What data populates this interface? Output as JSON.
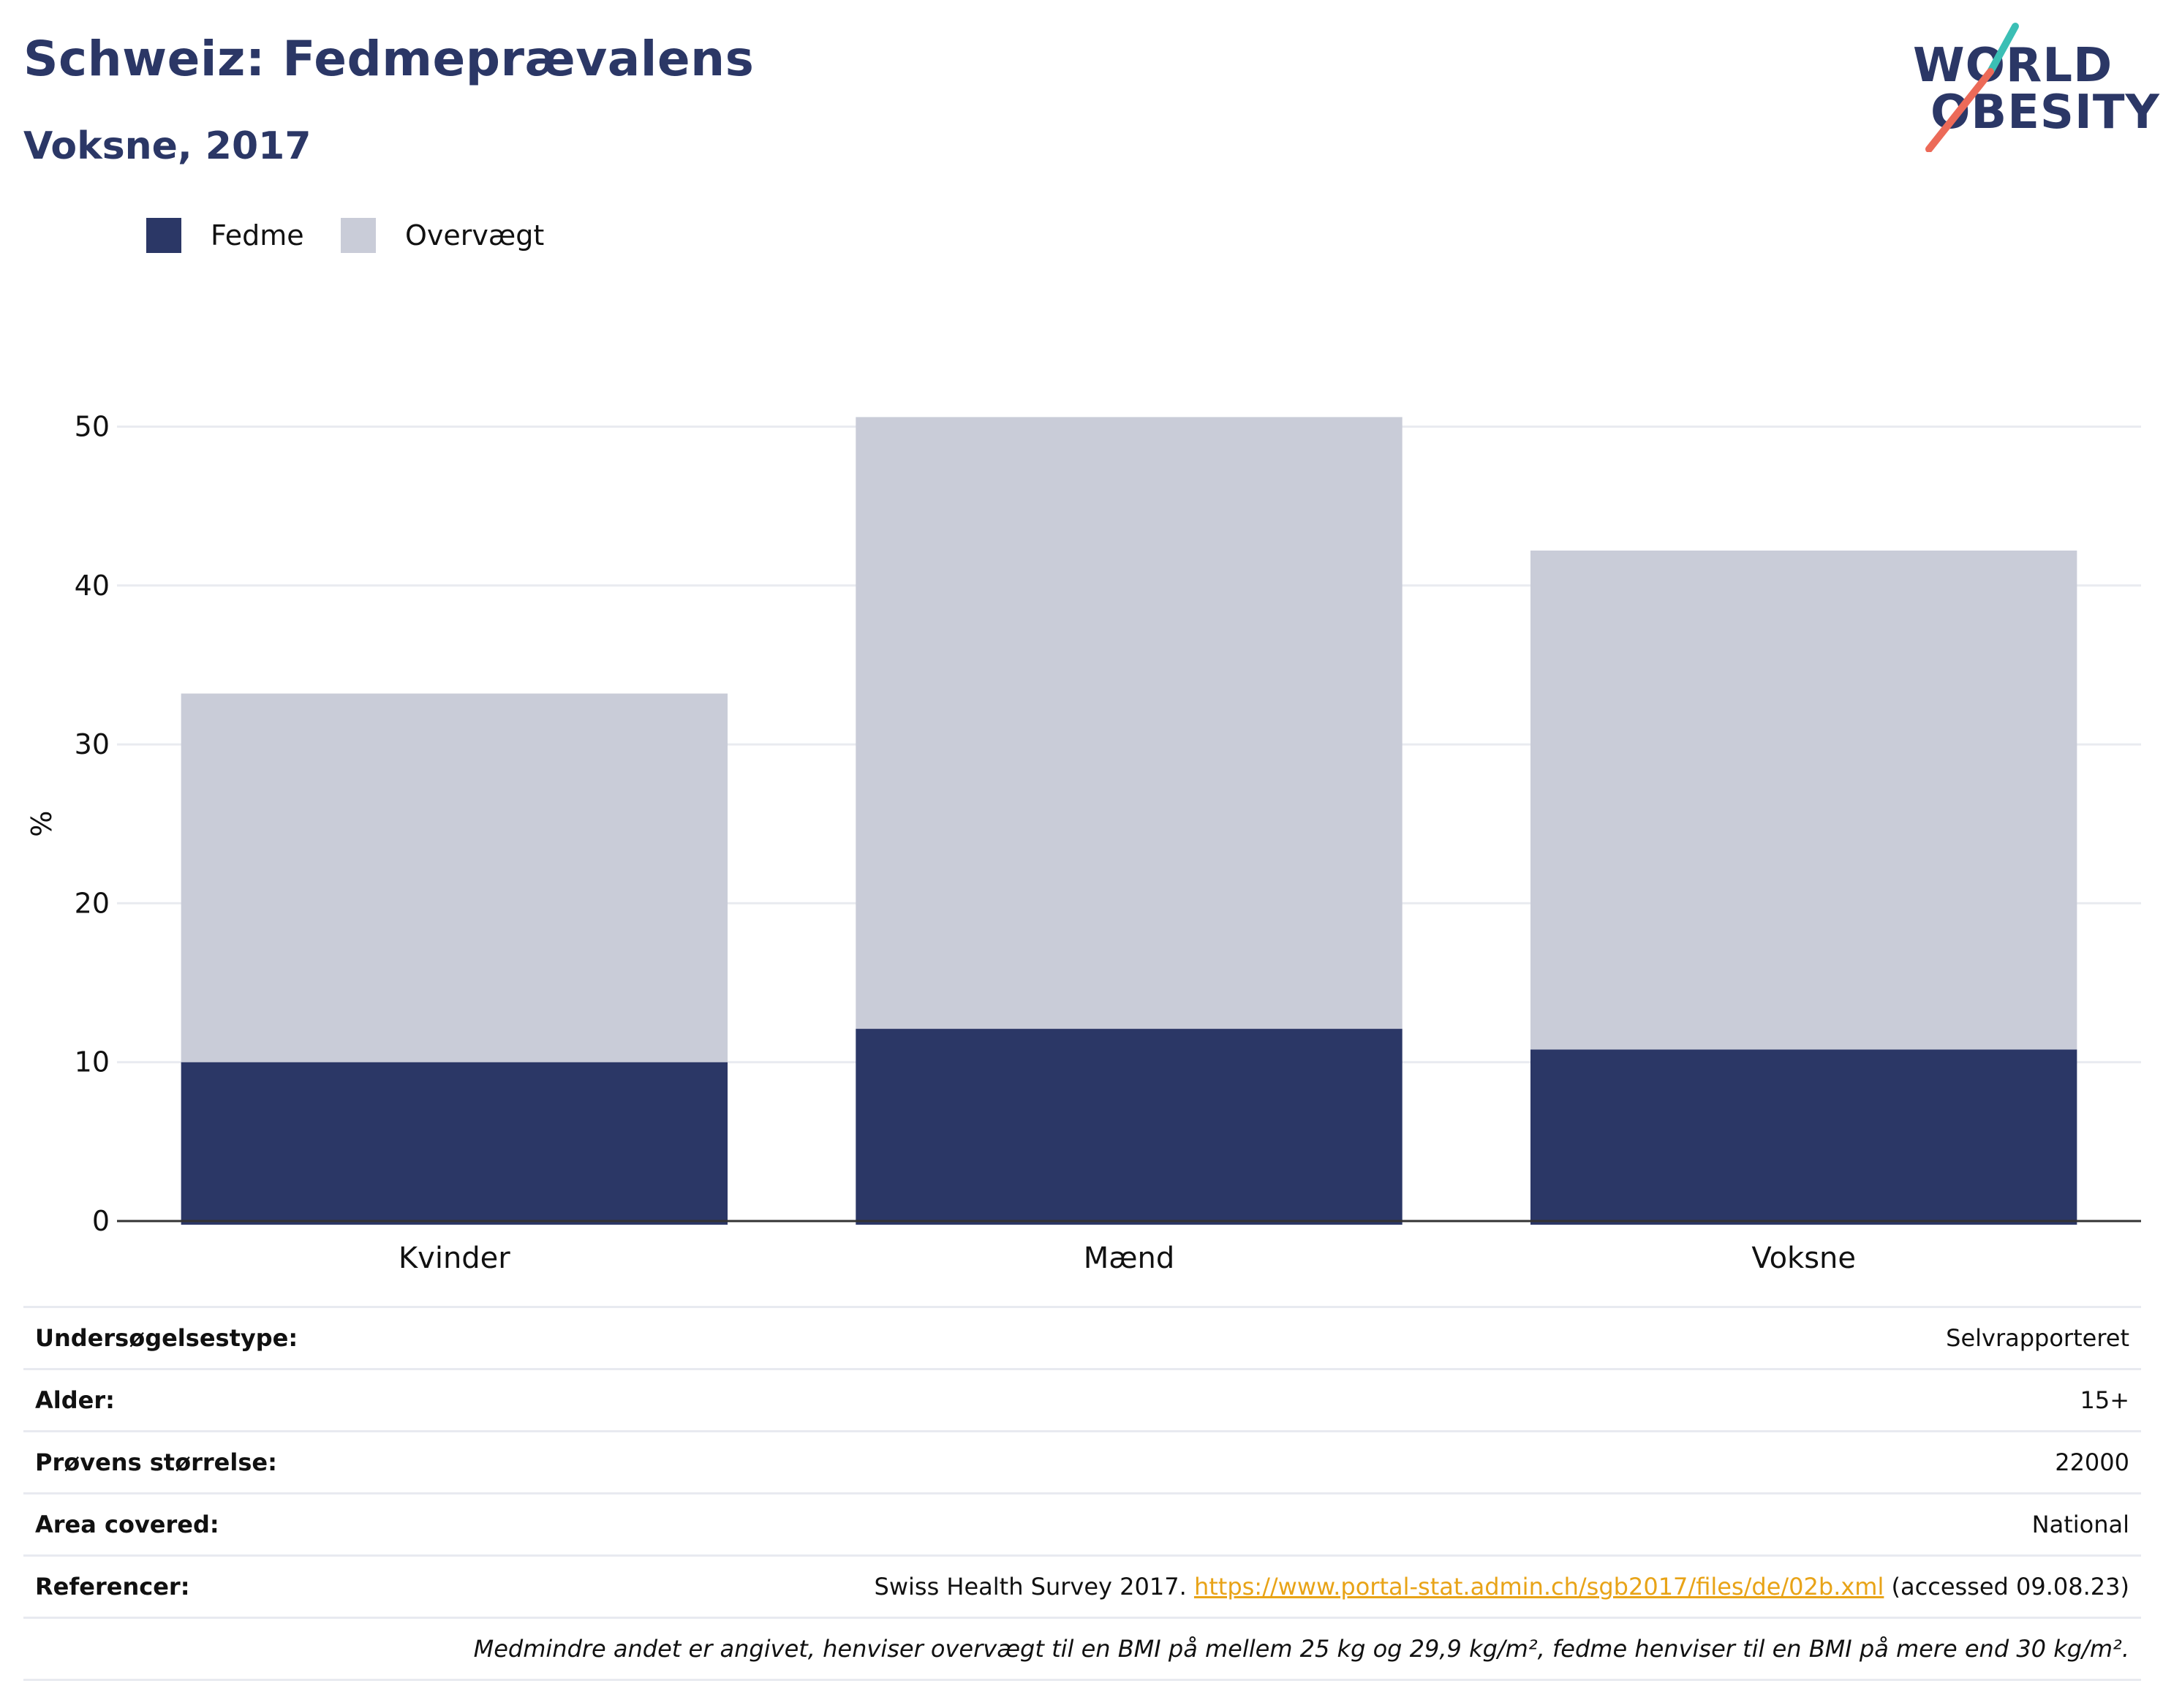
{
  "header": {
    "title": "Schweiz: Fedmeprævalens",
    "subtitle": "Voksne, 2017"
  },
  "logo": {
    "line1": "WORLD",
    "line2": "OBESITY",
    "colors": {
      "text": "#2b3766",
      "teal": "#3bbfb5",
      "coral": "#ec6a58"
    }
  },
  "legend": [
    {
      "label": "Fedme",
      "color": "#2b3766"
    },
    {
      "label": "Overvægt",
      "color": "#c9ccd8"
    }
  ],
  "chart_data": {
    "type": "bar",
    "stacked": true,
    "title": "Schweiz: Fedmeprævalens",
    "subtitle": "Voksne, 2017",
    "xlabel": "",
    "ylabel": "%",
    "categories": [
      "Kvinder",
      "Mænd",
      "Voksne"
    ],
    "series": [
      {
        "name": "Fedme",
        "color": "#2b3766",
        "values": [
          10,
          12.1,
          10.8
        ]
      },
      {
        "name": "Overvægt",
        "color": "#c9ccd8",
        "values": [
          23.2,
          38.5,
          31.4
        ]
      }
    ],
    "ylim": [
      0,
      52
    ],
    "yticks": [
      0,
      10,
      20,
      30,
      40,
      50
    ],
    "grid": true,
    "legend_position": "top-left"
  },
  "meta": {
    "rows": [
      {
        "key": "Undersøgelsestype:",
        "value": "Selvrapporteret"
      },
      {
        "key": "Alder:",
        "value": "15+"
      },
      {
        "key": "Prøvens størrelse:",
        "value": "22000"
      },
      {
        "key": "Area covered:",
        "value": "National"
      }
    ],
    "references": {
      "key": "Referencer:",
      "prefix": "Swiss Health Survey 2017. ",
      "link": "https://www.portal-stat.admin.ch/sgb2017/files/de/02b.xml",
      "suffix": " (accessed 09.08.23)"
    },
    "note": "Medmindre andet er angivet, henviser overvægt til en BMI på mellem 25 kg og 29,9 kg/m², fedme henviser til en BMI på mere end 30 kg/m²."
  }
}
